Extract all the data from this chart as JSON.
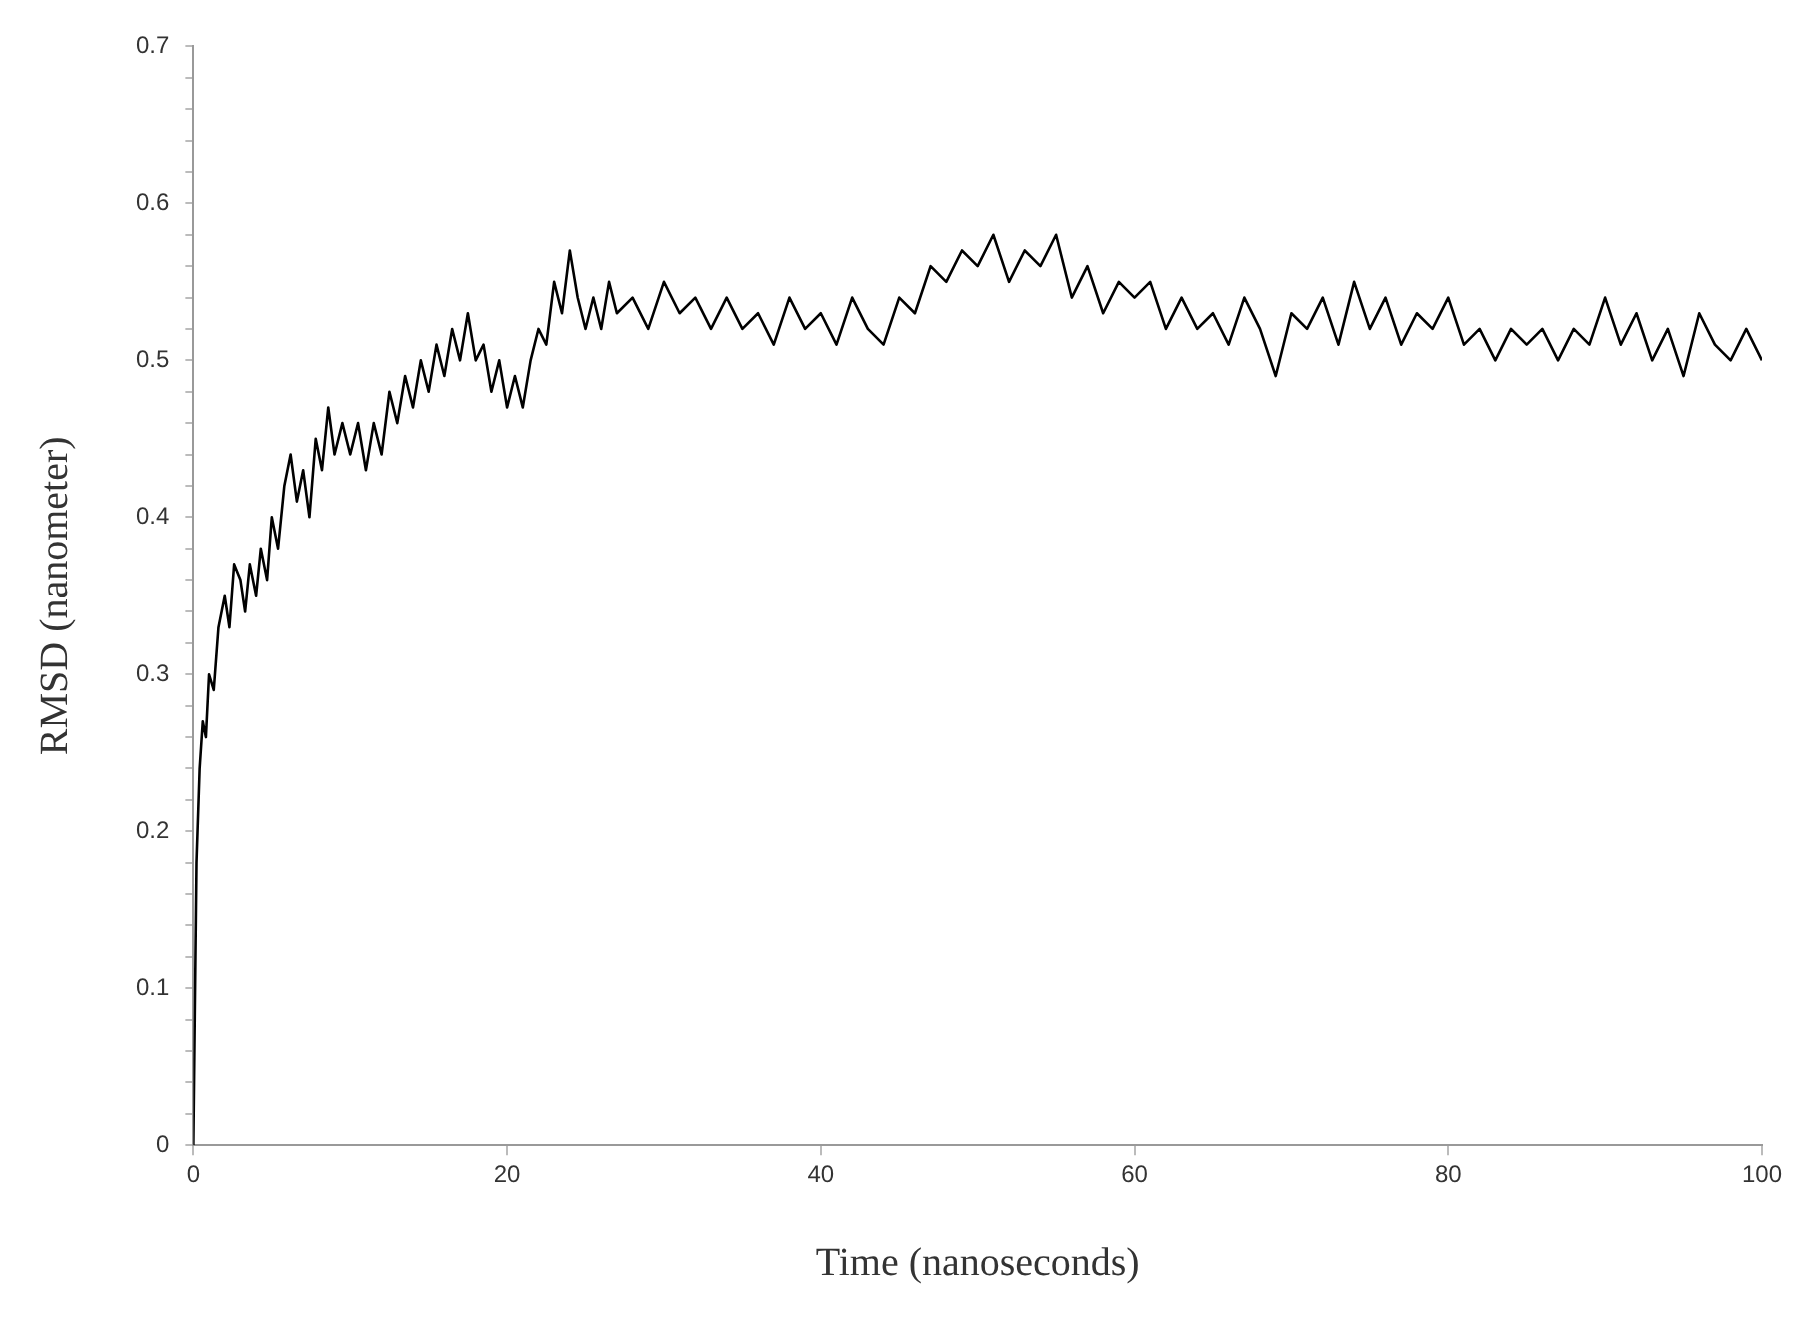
{
  "chart_data": {
    "type": "line",
    "xlabel": "Time (nanoseconds)",
    "ylabel": "RMSD (nanometer)",
    "xlim": [
      0,
      100
    ],
    "xticks": [
      0,
      20,
      40,
      60,
      80,
      100
    ],
    "ylim": [
      0,
      0.7
    ],
    "yticks": [
      0,
      0.1,
      0.2,
      0.3,
      0.4,
      0.5,
      0.6,
      0.7
    ],
    "grid": false,
    "legend": false,
    "marker": "none",
    "line_style": "solid",
    "series": [
      {
        "color": "#000000",
        "x": [
          0,
          0.2,
          0.4,
          0.6,
          0.8,
          1,
          1.3,
          1.6,
          2,
          2.3,
          2.6,
          3,
          3.3,
          3.6,
          4,
          4.3,
          4.7,
          5,
          5.4,
          5.8,
          6.2,
          6.6,
          7,
          7.4,
          7.8,
          8.2,
          8.6,
          9,
          9.5,
          10,
          10.5,
          11,
          11.5,
          12,
          12.5,
          13,
          13.5,
          14,
          14.5,
          15,
          15.5,
          16,
          16.5,
          17,
          17.5,
          18,
          18.5,
          19,
          19.5,
          20,
          20.5,
          21,
          21.5,
          22,
          22.5,
          23,
          23.5,
          24,
          24.5,
          25,
          25.5,
          26,
          26.5,
          27,
          28,
          29,
          30,
          31,
          32,
          33,
          34,
          35,
          36,
          37,
          38,
          39,
          40,
          41,
          42,
          43,
          44,
          45,
          46,
          47,
          48,
          49,
          50,
          51,
          52,
          53,
          54,
          55,
          56,
          57,
          58,
          59,
          60,
          61,
          62,
          63,
          64,
          65,
          66,
          67,
          68,
          69,
          70,
          71,
          72,
          73,
          74,
          75,
          76,
          77,
          78,
          79,
          80,
          81,
          82,
          83,
          84,
          85,
          86,
          87,
          88,
          89,
          90,
          91,
          92,
          93,
          94,
          95,
          96,
          97,
          98,
          99,
          100
        ],
        "values": [
          0,
          0.18,
          0.24,
          0.27,
          0.26,
          0.3,
          0.29,
          0.33,
          0.35,
          0.33,
          0.37,
          0.36,
          0.34,
          0.37,
          0.35,
          0.38,
          0.36,
          0.4,
          0.38,
          0.42,
          0.44,
          0.41,
          0.43,
          0.4,
          0.45,
          0.43,
          0.47,
          0.44,
          0.46,
          0.44,
          0.46,
          0.43,
          0.46,
          0.44,
          0.48,
          0.46,
          0.49,
          0.47,
          0.5,
          0.48,
          0.51,
          0.49,
          0.52,
          0.5,
          0.53,
          0.5,
          0.51,
          0.48,
          0.5,
          0.47,
          0.49,
          0.47,
          0.5,
          0.52,
          0.51,
          0.55,
          0.53,
          0.57,
          0.54,
          0.52,
          0.54,
          0.52,
          0.55,
          0.53,
          0.54,
          0.52,
          0.55,
          0.53,
          0.54,
          0.52,
          0.54,
          0.52,
          0.53,
          0.51,
          0.54,
          0.52,
          0.53,
          0.51,
          0.54,
          0.52,
          0.51,
          0.54,
          0.53,
          0.56,
          0.55,
          0.57,
          0.56,
          0.58,
          0.55,
          0.57,
          0.56,
          0.58,
          0.54,
          0.56,
          0.53,
          0.55,
          0.54,
          0.55,
          0.52,
          0.54,
          0.52,
          0.53,
          0.51,
          0.54,
          0.52,
          0.49,
          0.53,
          0.52,
          0.54,
          0.51,
          0.55,
          0.52,
          0.54,
          0.51,
          0.53,
          0.52,
          0.54,
          0.51,
          0.52,
          0.5,
          0.52,
          0.51,
          0.52,
          0.5,
          0.52,
          0.51,
          0.54,
          0.51,
          0.53,
          0.5,
          0.52,
          0.49,
          0.53,
          0.51,
          0.5,
          0.52,
          0.5
        ]
      }
    ]
  }
}
